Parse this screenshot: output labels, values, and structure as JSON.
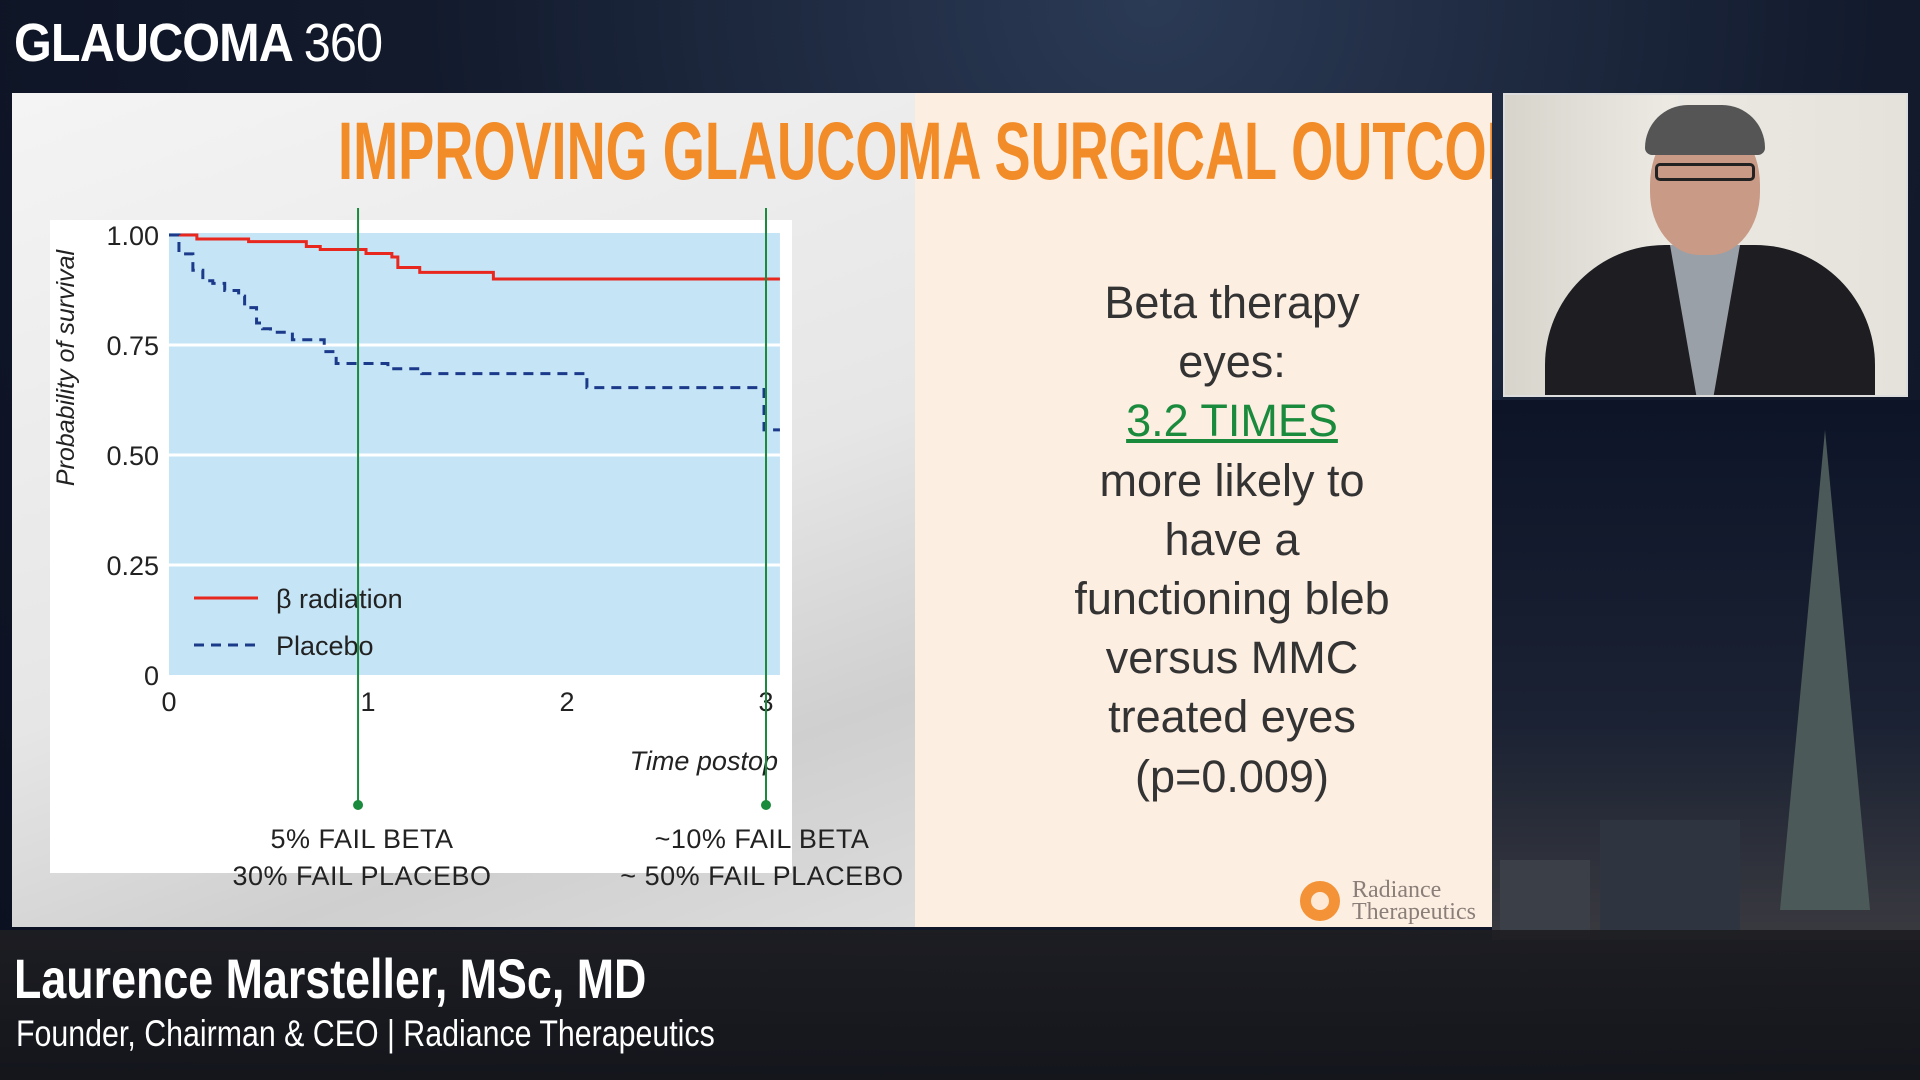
{
  "brand": {
    "name": "GLAUCOMA",
    "number": "360"
  },
  "slide": {
    "title": "IMPROVING GLAUCOMA SURGICAL OUTCOMES",
    "annotations": [
      {
        "line1": "5% FAIL BETA",
        "line2": "30% FAIL PLACEBO"
      },
      {
        "line1": "~10% FAIL BETA",
        "line2": "~ 50% FAIL PLACEBO"
      }
    ],
    "right_text": {
      "line1": "Beta therapy",
      "line2": "eyes:",
      "highlight": "3.2 TIMES",
      "line3": "more likely to",
      "line4": "have a",
      "line5": "functioning bleb",
      "line6": "versus MMC",
      "line7": "treated eyes",
      "line8": "(p=0.009)"
    },
    "logo": {
      "line1": "Radiance",
      "line2": "Therapeutics"
    },
    "colors": {
      "title": "#f28c28",
      "highlight": "#1a8a3c",
      "marker_lines": "#1a8a3c"
    }
  },
  "chart_data": {
    "type": "line",
    "ylabel": "Probability of survival",
    "xlabel": "Time postop",
    "xlim": [
      0,
      3.07
    ],
    "ylim": [
      0,
      1
    ],
    "xticks": [
      "0",
      "1",
      "2",
      "3"
    ],
    "yticks": [
      "0",
      "0.25",
      "0.50",
      "0.75",
      "1.00"
    ],
    "grid": true,
    "legend": "bottom-left",
    "background": "#c5e5f7",
    "marker_lines_x": [
      0.95,
      3.0
    ],
    "series": [
      {
        "name": "β radiation",
        "style": "solid",
        "color": "#e8281e",
        "x": [
          0,
          0.14,
          0.4,
          0.69,
          0.76,
          0.99,
          1.12,
          1.15,
          1.26,
          1.63,
          3.07
        ],
        "y": [
          1.0,
          0.991,
          0.985,
          0.974,
          0.967,
          0.958,
          0.95,
          0.926,
          0.915,
          0.9,
          0.9
        ]
      },
      {
        "name": "Placebo",
        "style": "dashed",
        "color": "#1c3a8a",
        "x": [
          0,
          0.05,
          0.12,
          0.17,
          0.22,
          0.28,
          0.35,
          0.38,
          0.44,
          0.47,
          0.51,
          0.62,
          0.78,
          0.84,
          1.1,
          1.27,
          2.1,
          2.99,
          3.07
        ],
        "y": [
          1.0,
          0.957,
          0.92,
          0.896,
          0.89,
          0.874,
          0.861,
          0.835,
          0.8,
          0.787,
          0.779,
          0.762,
          0.735,
          0.708,
          0.696,
          0.685,
          0.653,
          0.557,
          0.557
        ]
      }
    ]
  },
  "speaker": {
    "name": "Laurence Marsteller, MSc, MD",
    "role": "Founder, Chairman & CEO | Radiance Therapeutics"
  }
}
